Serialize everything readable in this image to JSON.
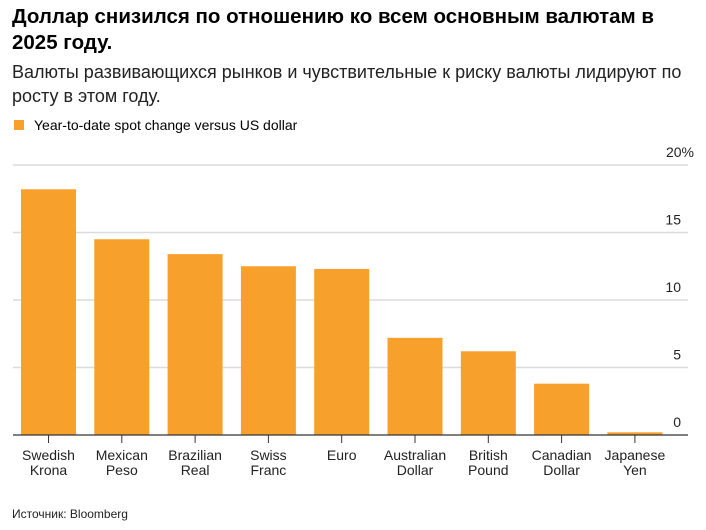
{
  "title": "Доллар снизился по отношению ко всем основным валютам в 2025 году.",
  "subtitle": "Валюты развивающихся рынков и чувствительные к риску валюты лидируют по росту в этом году.",
  "source": "Источник: Bloomberg",
  "chart_data": {
    "type": "bar",
    "title": "Доллар снизился по отношению ко всем основным валютам в 2025 году.",
    "legend": [
      "Year-to-date spot change versus US dollar"
    ],
    "legend_position": "top-left",
    "categories": [
      [
        "Swedish",
        "Krona"
      ],
      [
        "Mexican",
        "Peso"
      ],
      [
        "Brazilian",
        "Real"
      ],
      [
        "Swiss",
        "Franc"
      ],
      [
        "Euro"
      ],
      [
        "Australian",
        "Dollar"
      ],
      [
        "British",
        "Pound"
      ],
      [
        "Canadian",
        "Dollar"
      ],
      [
        "Japanese",
        "Yen"
      ]
    ],
    "series": [
      {
        "name": "Year-to-date spot change versus US dollar",
        "values": [
          18.2,
          14.5,
          13.4,
          12.5,
          12.3,
          7.2,
          6.2,
          3.8,
          0.2
        ]
      }
    ],
    "ylim": [
      0,
      20
    ],
    "yticks": [
      "0",
      "5",
      "10",
      "15",
      "20%"
    ],
    "yaxis_position": "right",
    "grid": true,
    "bar_color": "#f7a02c"
  }
}
